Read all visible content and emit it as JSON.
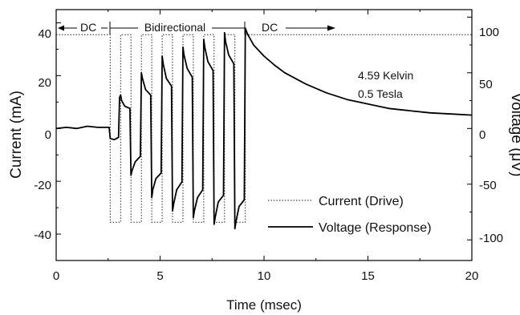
{
  "chart_data": {
    "type": "line",
    "xlabel": "Time (msec)",
    "ylabel": "Current (mA)",
    "y2label": "Voltage (μV)",
    "xlim": [
      0,
      20
    ],
    "ylim": [
      -50,
      45
    ],
    "y2lim": [
      -118.5,
      106.7
    ],
    "x_ticks": [
      "0",
      "5",
      "10",
      "15",
      "20"
    ],
    "y_ticks": [
      "40",
      "20",
      "0",
      "-20",
      "-40"
    ],
    "y2_ticks": [
      "100",
      "50",
      "0",
      "-50",
      "-100"
    ],
    "annotations": {
      "dc_left": "DC",
      "bidirectional": "Bidirectional",
      "dc_right": "DC",
      "temperature": "4.59 Kelvin",
      "field": "0.5 Tesla"
    },
    "legend_position": "lower-right",
    "series": [
      {
        "name": "Current (Drive)",
        "axis": "left",
        "style": "dotted",
        "x": [
          0,
          2.6,
          2.6,
          3.1,
          3.1,
          3.6,
          3.6,
          4.1,
          4.1,
          4.6,
          4.6,
          5.1,
          5.1,
          5.6,
          5.6,
          6.1,
          6.1,
          6.6,
          6.6,
          7.1,
          7.1,
          7.6,
          7.6,
          8.1,
          8.1,
          8.6,
          8.6,
          9.1,
          9.1,
          20
        ],
        "y": [
          35.5,
          35.5,
          -35.5,
          -35.5,
          35.5,
          35.5,
          -35.5,
          -35.5,
          35.5,
          35.5,
          -35.5,
          -35.5,
          35.5,
          35.5,
          -35.5,
          -35.5,
          35.5,
          35.5,
          -35.5,
          -35.5,
          35.5,
          35.5,
          -35.5,
          -35.5,
          35.5,
          35.5,
          -35.5,
          -35.5,
          35.5,
          35.5
        ]
      },
      {
        "name": "Voltage (Response)",
        "axis": "right",
        "style": "solid",
        "x": [
          0,
          0.5,
          1,
          1.5,
          2,
          2.55,
          2.6,
          2.8,
          3.0,
          3.05,
          3.1,
          3.15,
          3.3,
          3.55,
          3.6,
          3.65,
          3.8,
          4.05,
          4.1,
          4.15,
          4.3,
          4.55,
          4.6,
          4.65,
          4.8,
          5.05,
          5.1,
          5.15,
          5.3,
          5.55,
          5.6,
          5.65,
          5.8,
          6.05,
          6.1,
          6.15,
          6.3,
          6.55,
          6.6,
          6.65,
          6.8,
          7.05,
          7.1,
          7.15,
          7.3,
          7.55,
          7.6,
          7.65,
          7.8,
          8.05,
          8.1,
          8.15,
          8.3,
          8.55,
          8.6,
          8.65,
          8.8,
          9.05,
          9.1,
          9.2,
          9.5,
          10,
          10.5,
          11,
          12,
          13,
          14,
          15,
          16,
          17,
          18,
          19,
          20
        ],
        "y": [
          0,
          1,
          0,
          2,
          1,
          1,
          -9,
          -10,
          -8,
          28,
          30,
          25,
          20,
          18,
          -42,
          -38,
          -30,
          -25,
          50,
          45,
          35,
          30,
          -62,
          -55,
          -45,
          -40,
          65,
          58,
          45,
          38,
          -74,
          -68,
          -55,
          -48,
          73,
          66,
          54,
          46,
          -80,
          -74,
          -62,
          -55,
          80,
          73,
          60,
          52,
          -86,
          -80,
          -66,
          -60,
          86,
          78,
          66,
          58,
          -90,
          -84,
          -70,
          -64,
          90,
          85,
          75,
          65,
          57,
          50,
          40,
          32,
          26,
          22,
          18,
          16,
          14,
          13,
          12
        ]
      }
    ]
  }
}
